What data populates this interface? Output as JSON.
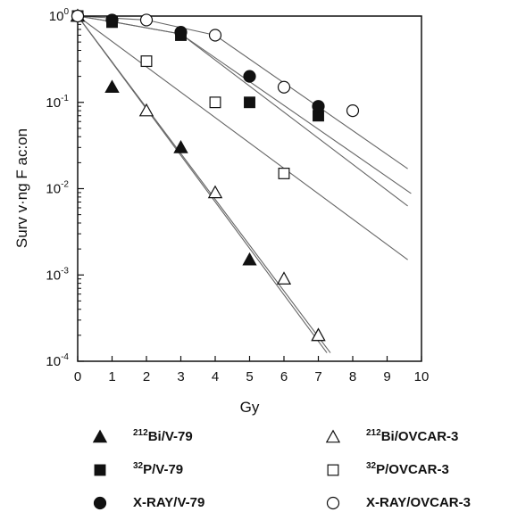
{
  "chart_data": {
    "type": "scatter",
    "title": "",
    "xlabel": "Gy",
    "ylabel": "Surv v·ng F ac:on",
    "xlim": [
      0,
      10
    ],
    "ylim": [
      0.0001,
      1
    ],
    "yscale": "log",
    "grid": false,
    "legend_position": "bottom",
    "x_ticks": [
      0,
      1,
      2,
      3,
      4,
      5,
      6,
      7,
      8,
      9,
      10
    ],
    "y_ticks": [
      {
        "value": 1,
        "base": "10",
        "exp": "0"
      },
      {
        "value": 0.1,
        "base": "10",
        "exp": "-1"
      },
      {
        "value": 0.01,
        "base": "10",
        "exp": "-2"
      },
      {
        "value": 0.001,
        "base": "10",
        "exp": "-3"
      },
      {
        "value": 0.0001,
        "base": "10",
        "exp": "-4"
      }
    ],
    "series": [
      {
        "name_sup": "212",
        "name_main": "Bi/V-79",
        "marker": "triangle",
        "filled": true,
        "points": [
          [
            0,
            1.0
          ],
          [
            1,
            0.15
          ],
          [
            3,
            0.03
          ],
          [
            5,
            0.0015
          ],
          [
            7,
            0.0002
          ]
        ],
        "fit": [
          [
            0,
            1.0
          ],
          [
            7.35,
            0.000125
          ]
        ]
      },
      {
        "name_sup": "32",
        "name_main": "P/V-79",
        "marker": "square",
        "filled": true,
        "points": [
          [
            0,
            1.0
          ],
          [
            1,
            0.85
          ],
          [
            3,
            0.6
          ],
          [
            5,
            0.1
          ],
          [
            7,
            0.07
          ]
        ],
        "fit": [
          [
            0,
            1.0
          ],
          [
            1,
            0.86
          ],
          [
            3,
            0.62
          ],
          [
            9.6,
            0.0063
          ]
        ]
      },
      {
        "name_sup": "",
        "name_main": "X-RAY/V-79",
        "marker": "circle",
        "filled": true,
        "points": [
          [
            0,
            1.0
          ],
          [
            1,
            0.9
          ],
          [
            3,
            0.65
          ],
          [
            5,
            0.2
          ],
          [
            7,
            0.09
          ]
        ],
        "fit": [
          [
            0,
            1.0
          ],
          [
            1,
            0.86
          ],
          [
            3,
            0.62
          ],
          [
            9.7,
            0.0088
          ]
        ]
      },
      {
        "name_sup": "212",
        "name_main": "Bi/OVCAR-3",
        "marker": "triangle",
        "filled": false,
        "points": [
          [
            0,
            1.0
          ],
          [
            2,
            0.08
          ],
          [
            4,
            0.009
          ],
          [
            6,
            0.0009
          ],
          [
            7,
            0.0002
          ]
        ],
        "fit": [
          [
            0,
            1.0
          ],
          [
            7.25,
            0.000125
          ]
        ]
      },
      {
        "name_sup": "32",
        "name_main": "P/OVCAR-3",
        "marker": "square",
        "filled": false,
        "points": [
          [
            0,
            1.0
          ],
          [
            2,
            0.3
          ],
          [
            4,
            0.1
          ],
          [
            6,
            0.015
          ]
        ],
        "fit": [
          [
            0,
            1.0
          ],
          [
            9.6,
            0.0015
          ]
        ]
      },
      {
        "name_sup": "",
        "name_main": "X-RAY/OVCAR-3",
        "marker": "circle",
        "filled": false,
        "points": [
          [
            0,
            1.0
          ],
          [
            2,
            0.9
          ],
          [
            4,
            0.6
          ],
          [
            6,
            0.15
          ],
          [
            8,
            0.08
          ]
        ],
        "fit": [
          [
            0,
            1.0
          ],
          [
            2,
            0.9
          ],
          [
            4,
            0.6
          ],
          [
            9.6,
            0.017
          ]
        ]
      }
    ]
  }
}
